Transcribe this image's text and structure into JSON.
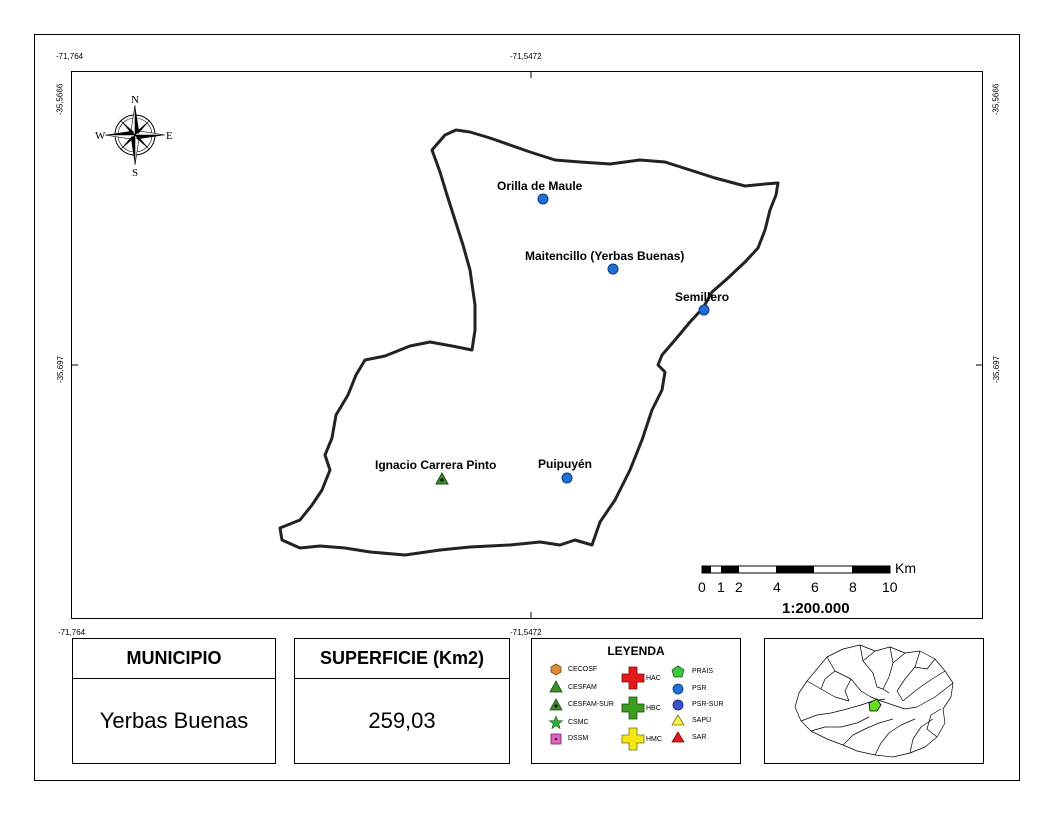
{
  "coords": {
    "top_left": "-71,764",
    "top_center": "-71,5472",
    "bottom_left": "-71,764",
    "bottom_center": "-71,5472",
    "left_top": "-35,5666",
    "left_mid": "-35,697",
    "right_top": "-35,5666",
    "right_mid": "-35,697"
  },
  "compass": {
    "n": "N",
    "s": "S",
    "e": "E",
    "w": "W"
  },
  "places": [
    {
      "name": "Orilla de Maule",
      "type": "PSR"
    },
    {
      "name": "Maitencillo (Yerbas Buenas)",
      "type": "PSR"
    },
    {
      "name": "Semillero",
      "type": "PSR"
    },
    {
      "name": "Puipuyén",
      "type": "PSR"
    },
    {
      "name": "Ignacio Carrera Pinto",
      "type": "CESFAM-SUR"
    }
  ],
  "scalebar": {
    "unit": "Km",
    "ticks": [
      "0",
      "1",
      "2",
      "4",
      "6",
      "8",
      "10"
    ],
    "scale": "1:200.000"
  },
  "municipio": {
    "title": "MUNICIPIO",
    "value": "Yerbas Buenas"
  },
  "superficie": {
    "title": "SUPERFICIE (Km2)",
    "value": "259,03"
  },
  "legend": {
    "title": "LEYENDA",
    "items": {
      "cecosf": "CECOSF",
      "cesfam": "CESFAM",
      "cesfam_sur": "CESFAM-SUR",
      "csmc": "CSMC",
      "dssm": "DSSM",
      "hac": "HAC",
      "hbc": "HBC",
      "hmc": "HMC",
      "prais": "PRAIS",
      "psr": "PSR",
      "psr_sur": "PSR-SUR",
      "sapu": "SAPU",
      "sar": "SAR"
    },
    "colors": {
      "cecosf": "#d98c3a",
      "cesfam": "#3f8f2a",
      "csmc": "#2fae3a",
      "dssm": "#e060c0",
      "hac": "#e31a1c",
      "hbc": "#3c9e1e",
      "hmc": "#f5e716",
      "prais": "#3cc63c",
      "psr": "#1f6fd6",
      "psr_sur": "#3b55c9",
      "sapu": "#f3f34a",
      "sar": "#e31a1c"
    }
  },
  "inset_highlight_color": "#66dd22"
}
